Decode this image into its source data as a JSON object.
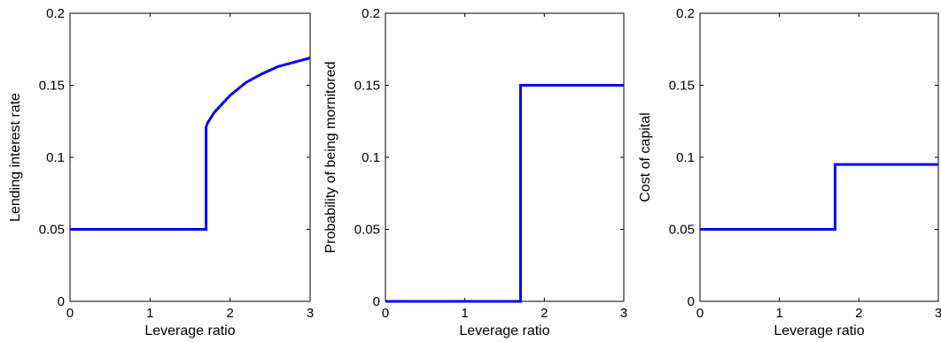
{
  "chart_data": [
    {
      "type": "line",
      "xlabel": "Leverage ratio",
      "ylabel": "Lending interest rate",
      "xlim": [
        0,
        3
      ],
      "ylim": [
        0,
        0.2
      ],
      "xticks": [
        0,
        1,
        2,
        3
      ],
      "xtick_labels": [
        "0",
        "1",
        "2",
        "3"
      ],
      "yticks": [
        0,
        0.05,
        0.1,
        0.15,
        0.2
      ],
      "ytick_labels": [
        "0",
        "0.05",
        "0.1",
        "0.15",
        "0.2"
      ],
      "grid": false,
      "series": [
        {
          "color": "#0000ff",
          "x": [
            0,
            1.7,
            1.7,
            1.72,
            1.8,
            1.9,
            2.0,
            2.2,
            2.4,
            2.6,
            2.8,
            3.0
          ],
          "y": [
            0.05,
            0.05,
            0.121,
            0.124,
            0.131,
            0.137,
            0.143,
            0.152,
            0.158,
            0.163,
            0.166,
            0.169
          ]
        }
      ]
    },
    {
      "type": "line",
      "xlabel": "Leverage ratio",
      "ylabel": "Probability of being mornitored",
      "xlim": [
        0,
        3
      ],
      "ylim": [
        0,
        0.2
      ],
      "xticks": [
        0,
        1,
        2,
        3
      ],
      "xtick_labels": [
        "0",
        "1",
        "2",
        "3"
      ],
      "yticks": [
        0,
        0.05,
        0.1,
        0.15,
        0.2
      ],
      "ytick_labels": [
        "0",
        "0.05",
        "0.1",
        "0.15",
        "0.2"
      ],
      "grid": false,
      "series": [
        {
          "color": "#0000ff",
          "x": [
            0,
            1.7,
            1.7,
            3.0
          ],
          "y": [
            0,
            0,
            0.15,
            0.15
          ]
        }
      ]
    },
    {
      "type": "line",
      "xlabel": "Leverage ratio",
      "ylabel": "Cost of capital",
      "xlim": [
        0,
        3
      ],
      "ylim": [
        0,
        0.2
      ],
      "xticks": [
        0,
        1,
        2,
        3
      ],
      "xtick_labels": [
        "0",
        "1",
        "2",
        "3"
      ],
      "yticks": [
        0,
        0.05,
        0.1,
        0.15,
        0.2
      ],
      "ytick_labels": [
        "0",
        "0.05",
        "0.1",
        "0.15",
        "0.2"
      ],
      "grid": false,
      "series": [
        {
          "color": "#0000ff",
          "x": [
            0,
            1.7,
            1.7,
            3.0
          ],
          "y": [
            0.05,
            0.05,
            0.095,
            0.095
          ]
        }
      ]
    }
  ]
}
